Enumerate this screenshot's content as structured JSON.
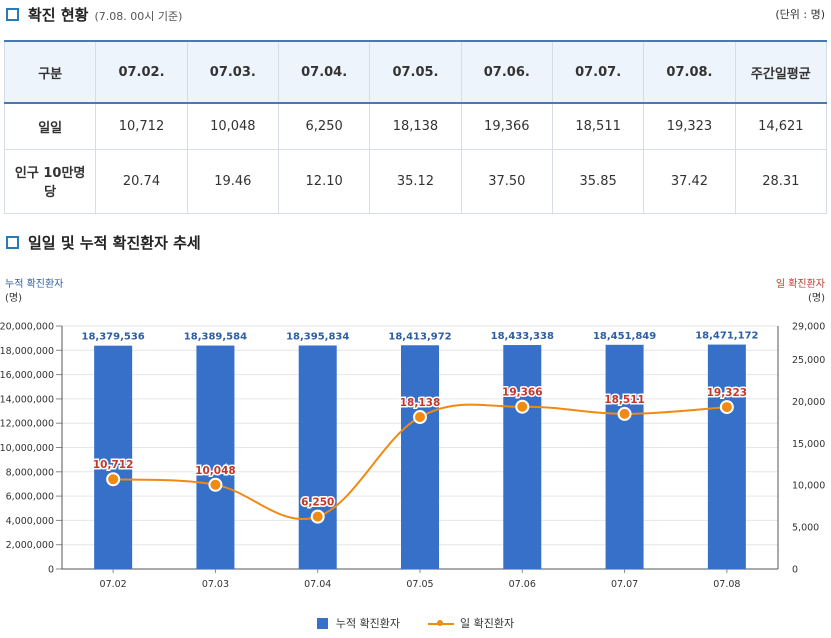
{
  "header": {
    "title": "확진 현황",
    "subtitle": "(7.08. 00시 기준)",
    "unit": "(단위 : 명)"
  },
  "table": {
    "corner": "구분",
    "columns": [
      "07.02.",
      "07.03.",
      "07.04.",
      "07.05.",
      "07.06.",
      "07.07.",
      "07.08.",
      "주간일평균"
    ],
    "rows": [
      {
        "label": "일일",
        "values": [
          "10,712",
          "10,048",
          "6,250",
          "18,138",
          "19,366",
          "18,511",
          "19,323",
          "14,621"
        ]
      },
      {
        "label": "인구 10만명당",
        "values": [
          "20.74",
          "19.46",
          "12.10",
          "35.12",
          "37.50",
          "35.85",
          "37.42",
          "28.31"
        ]
      }
    ]
  },
  "trend": {
    "title": "일일 및 누적 확진환자 추세",
    "left_axis_title": "누적 확진환자",
    "left_axis_unit": "(명)",
    "right_axis_title": "일 확진환자",
    "right_axis_unit": "(명)"
  },
  "chart_data": {
    "type": "bar",
    "categories": [
      "07.02",
      "07.03",
      "07.04",
      "07.05",
      "07.06",
      "07.07",
      "07.08"
    ],
    "series": [
      {
        "name": "누적 확진환자",
        "type": "bar",
        "axis": "left",
        "color": "#3670c9",
        "values": [
          18379536,
          18389584,
          18395834,
          18413972,
          18433338,
          18451849,
          18471172
        ],
        "labels": [
          "18,379,536",
          "18,389,584",
          "18,395,834",
          "18,413,972",
          "18,433,338",
          "18,451,849",
          "18,471,172"
        ]
      },
      {
        "name": "일 확진환자",
        "type": "line",
        "axis": "right",
        "color": "#f08a10",
        "values": [
          10712,
          10048,
          6250,
          18138,
          19366,
          18511,
          19323
        ],
        "labels": [
          "10,712",
          "10,048",
          "6,250",
          "18,138",
          "19,366",
          "18,511",
          "19,323"
        ]
      }
    ],
    "left_axis": {
      "range": [
        0,
        20000000
      ],
      "ticks": [
        "0",
        "2,000,000",
        "4,000,000",
        "6,000,000",
        "8,000,000",
        "10,000,000",
        "12,000,000",
        "14,000,000",
        "16,000,000",
        "18,000,000",
        "20,000,000"
      ]
    },
    "right_axis": {
      "range": [
        0,
        29000
      ],
      "ticks": [
        "0",
        "5,000",
        "10,000",
        "15,000",
        "20,000",
        "25,000",
        "29,000"
      ],
      "tick_values": [
        0,
        5000,
        10000,
        15000,
        20000,
        25000,
        29000
      ]
    },
    "grid": true,
    "legend": "bottom",
    "bar_label_color": "#2d5ea3",
    "line_label_color": "#c0392b"
  }
}
